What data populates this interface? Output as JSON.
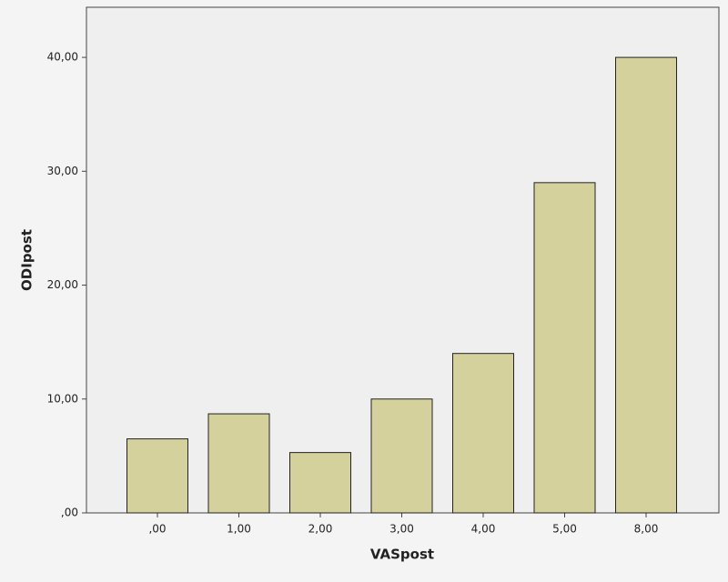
{
  "chart_data": {
    "type": "bar",
    "x_label": "VASpost",
    "y_label": "ODIpost",
    "categories": [
      ",00",
      "1,00",
      "2,00",
      "3,00",
      "4,00",
      "5,00",
      "8,00"
    ],
    "values": [
      6.5,
      8.7,
      5.3,
      10,
      14,
      29,
      40
    ],
    "color": "#d5d19c",
    "ylim": [
      0,
      44.4
    ],
    "yticks": [
      {
        "value": 0,
        "label": ",00"
      },
      {
        "value": 10,
        "label": "10,00"
      },
      {
        "value": 20,
        "label": "20,00"
      },
      {
        "value": 30,
        "label": "30,00"
      },
      {
        "value": 40,
        "label": "40,00"
      }
    ],
    "grid": false
  }
}
